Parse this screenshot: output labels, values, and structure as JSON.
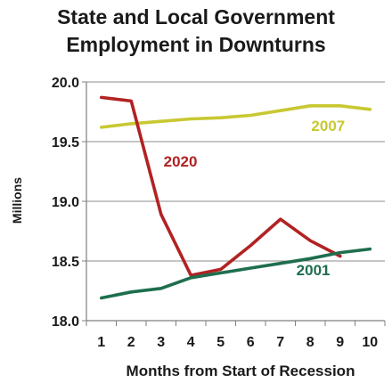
{
  "chart_data": {
    "type": "line",
    "title_lines": [
      "State and Local Government",
      "Employment in Downturns"
    ],
    "xlabel": "Months from Start of Recession",
    "ylabel": "Millions",
    "x": [
      1,
      2,
      3,
      4,
      5,
      6,
      7,
      8,
      9,
      10
    ],
    "x_tick_labels": [
      "1",
      "2",
      "3",
      "4",
      "5",
      "6",
      "7",
      "8",
      "9",
      "10"
    ],
    "xlim": [
      0.5,
      10.5
    ],
    "ylim": [
      18.0,
      20.0
    ],
    "y_ticks": [
      18.0,
      18.5,
      19.0,
      19.5,
      20.0
    ],
    "y_tick_labels": [
      "18.0",
      "18.5",
      "19.0",
      "19.5",
      "20.0"
    ],
    "grid": {
      "horizontal": true,
      "vertical": false
    },
    "legend": "none (series labeled directly on chart)",
    "series": [
      {
        "name": "2007",
        "color": "#c8c832",
        "x": [
          1,
          2,
          3,
          4,
          5,
          6,
          7,
          8,
          9,
          10
        ],
        "values": [
          19.62,
          19.65,
          19.67,
          19.69,
          19.7,
          19.72,
          19.76,
          19.8,
          19.8,
          19.77
        ],
        "label_at": [
          8.6,
          19.59
        ]
      },
      {
        "name": "2020",
        "color": "#b22222",
        "x": [
          1,
          2,
          3,
          4,
          5,
          6,
          7,
          8,
          9
        ],
        "values": [
          19.87,
          19.84,
          18.89,
          18.38,
          18.43,
          18.63,
          18.85,
          18.67,
          18.54
        ],
        "label_at": [
          3.65,
          19.29
        ]
      },
      {
        "name": "2001",
        "color": "#1e6e4e",
        "x": [
          1,
          2,
          3,
          4,
          5,
          6,
          7,
          8,
          9,
          10
        ],
        "values": [
          18.19,
          18.24,
          18.27,
          18.36,
          18.4,
          18.44,
          18.48,
          18.52,
          18.57,
          18.6
        ],
        "label_at": [
          8.1,
          18.38
        ]
      }
    ]
  }
}
